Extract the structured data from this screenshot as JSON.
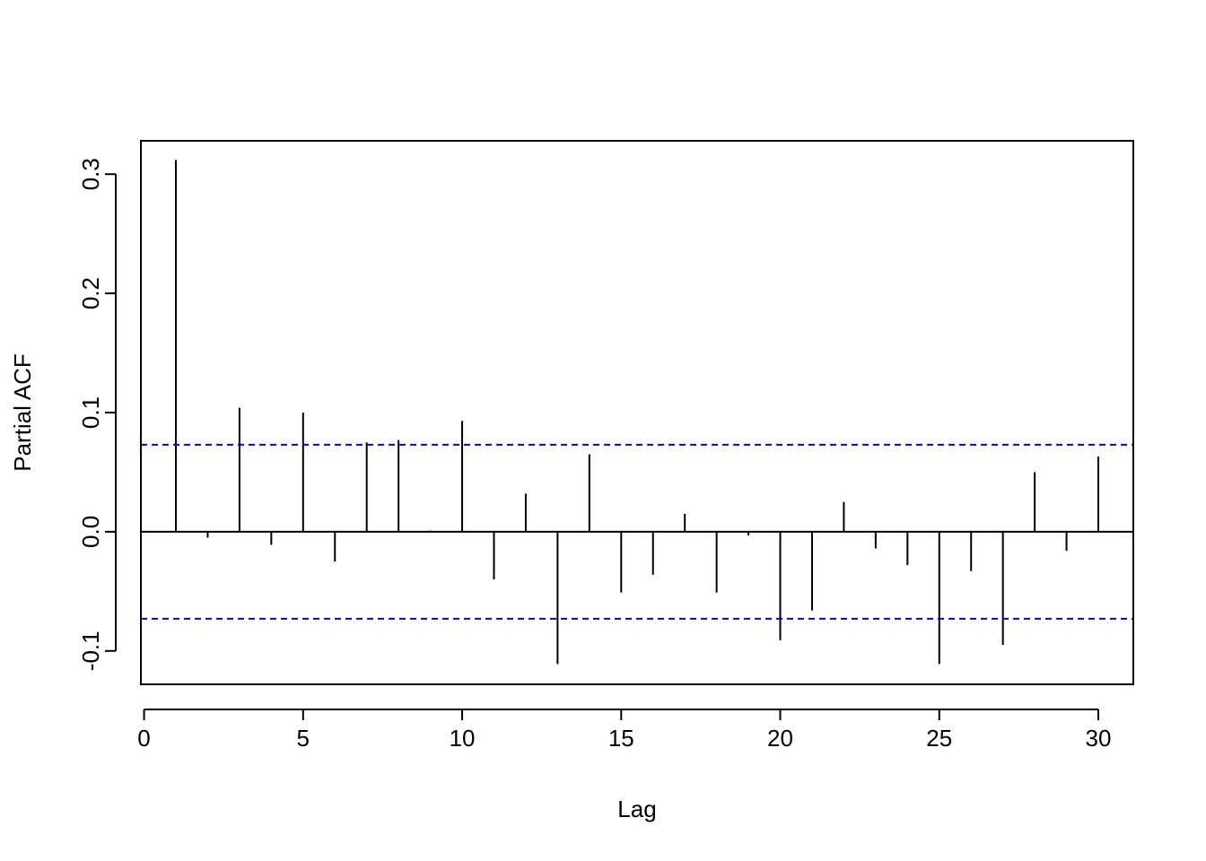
{
  "chart_data": {
    "type": "bar",
    "title": "",
    "xlabel": "Lag",
    "ylabel": "Partial ACF",
    "xlim": [
      -0.1,
      31.1
    ],
    "ylim": [
      -0.128,
      0.328
    ],
    "x_ticks": [
      0,
      5,
      10,
      15,
      20,
      25,
      30
    ],
    "x_tick_labels": [
      "0",
      "5",
      "10",
      "15",
      "20",
      "25",
      "30"
    ],
    "y_ticks": [
      -0.1,
      0.0,
      0.1,
      0.2,
      0.3
    ],
    "y_tick_labels": [
      "-0.1",
      "0.0",
      "0.1",
      "0.2",
      "0.3"
    ],
    "zero_line": 0.0,
    "confidence_bounds": [
      0.073,
      -0.073
    ],
    "colors": {
      "spikes": "#000000",
      "bounds": "#0000ff",
      "frame": "#000000"
    },
    "lags": [
      1,
      2,
      3,
      4,
      5,
      6,
      7,
      8,
      9,
      10,
      11,
      12,
      13,
      14,
      15,
      16,
      17,
      18,
      19,
      20,
      21,
      22,
      23,
      24,
      25,
      26,
      27,
      28,
      29,
      30
    ],
    "values": [
      0.312,
      -0.005,
      0.104,
      -0.011,
      0.1,
      -0.025,
      0.075,
      0.077,
      0.001,
      0.093,
      -0.04,
      0.032,
      -0.111,
      0.065,
      -0.051,
      -0.036,
      0.015,
      -0.051,
      -0.003,
      -0.091,
      -0.066,
      0.025,
      -0.014,
      -0.028,
      -0.111,
      -0.033,
      -0.095,
      0.05,
      -0.016,
      0.063
    ]
  }
}
